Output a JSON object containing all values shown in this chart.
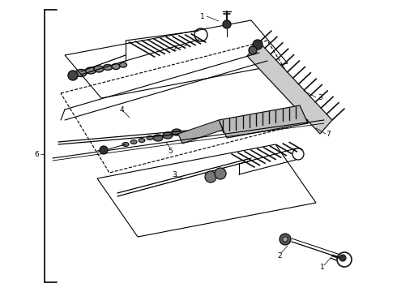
{
  "bg_color": "#ffffff",
  "line_color": "#000000",
  "dark_color": "#111111",
  "gray_color": "#555555",
  "label_fontsize": 6.5,
  "fig_width": 4.9,
  "fig_height": 3.6,
  "dpi": 100
}
